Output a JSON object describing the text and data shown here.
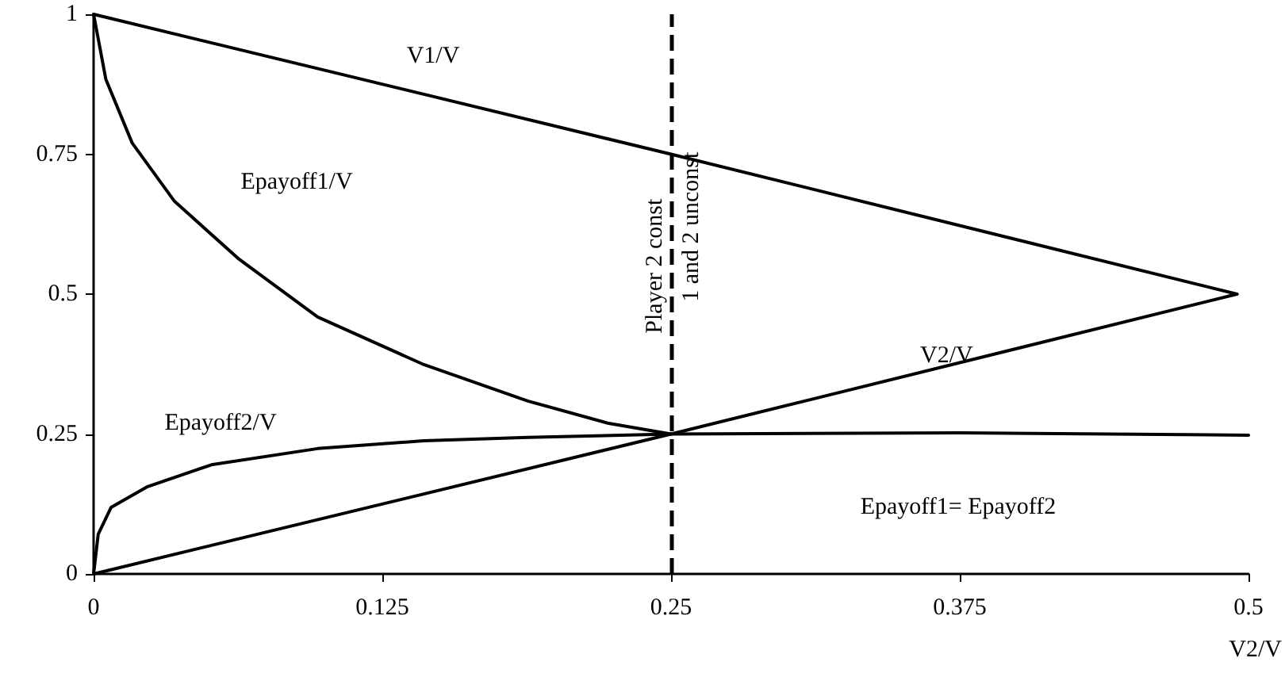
{
  "chart_data": {
    "type": "line",
    "xlabel": "V2/V",
    "xlim": [
      0,
      0.5
    ],
    "xticks": [
      0,
      0.125,
      0.25,
      0.375,
      0.5
    ],
    "ylim": [
      0,
      1
    ],
    "yticks": [
      0,
      0.25,
      0.5,
      0.75,
      1
    ],
    "grid": false,
    "marker": "none",
    "line_style": "solid",
    "series": [
      {
        "name": "V1/V",
        "color": "#000000",
        "x": [
          0,
          0.25,
          0.495
        ],
        "values": [
          1,
          0.75,
          0.5
        ]
      },
      {
        "name": "V2/V",
        "color": "#000000",
        "x": [
          0,
          0.25,
          0.495
        ],
        "values": [
          0,
          0.25,
          0.5
        ]
      },
      {
        "name": "Epayoff1/V",
        "color": "#000000",
        "x": [
          0,
          0.0053,
          0.0167,
          0.035,
          0.0625,
          0.097,
          0.143,
          0.188,
          0.223,
          0.25
        ],
        "values": [
          1,
          0.884,
          0.77,
          0.666,
          0.564,
          0.459,
          0.374,
          0.309,
          0.269,
          0.25
        ]
      },
      {
        "name": "Epayoff2/V",
        "color": "#000000",
        "x": [
          0,
          0.002,
          0.0076,
          0.0234,
          0.051,
          0.097,
          0.143,
          0.188,
          0.25,
          0.375,
          0.5
        ],
        "values": [
          0,
          0.071,
          0.119,
          0.156,
          0.195,
          0.224,
          0.238,
          0.244,
          0.25,
          0.252,
          0.248
        ]
      }
    ],
    "ref_lines": [
      {
        "axis": "x",
        "value": 0.25,
        "label": "Player 2 const",
        "color": "#000000",
        "line_style": "dashed"
      }
    ],
    "annotations": [
      {
        "text": "1 and 2 unconst",
        "x": 0.25,
        "y": 0.62
      },
      "Epayoff1= Epayoff2"
    ]
  }
}
